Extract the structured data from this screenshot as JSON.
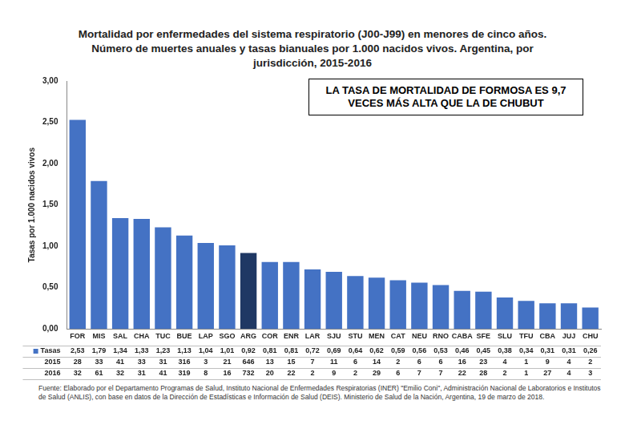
{
  "chart_data": {
    "type": "bar",
    "title": "Mortalidad por enfermedades del sistema respiratorio (J00-J99) en menores de cinco años. Número de muertes anuales y tasas bianuales por 1.000 nacidos vivos. Argentina, por jurisdicción, 2015-2016",
    "y_label": "Tasas por 1.000 nacidos vivos",
    "annotation": "LA TASA DE MORTALIDAD DE FORMOSA ES 9,7 VECES MÁS ALTA QUE LA DE CHUBUT",
    "source": "Fuente: Elaborado por el Departamento Programas de Salud, Instituto Nacional de Enfermedades Respiratorias (INER) \"Emilio Coni\", Administración Nacional de Laboratorios e Institutos de Salud (ANLIS), con base en datos de la Dirección de Estadísticas e Información de Salud (DEIS). Ministerio de Salud de la Nación, Argentina, 19 de marzo de 2018.",
    "categories": [
      "FOR",
      "MIS",
      "SAL",
      "CHA",
      "TUC",
      "BUE",
      "LAP",
      "SGO",
      "ARG",
      "COR",
      "ENR",
      "LAR",
      "SJU",
      "STU",
      "MEN",
      "CAT",
      "NEU",
      "RNO",
      "CABA",
      "SFE",
      "SLU",
      "TFU",
      "CBA",
      "JUJ",
      "CHU"
    ],
    "series": [
      {
        "name": "Tasas",
        "colors": [
          "#4472c4",
          "#4472c4",
          "#4472c4",
          "#4472c4",
          "#4472c4",
          "#4472c4",
          "#4472c4",
          "#4472c4",
          "#1f3864",
          "#4472c4",
          "#4472c4",
          "#4472c4",
          "#4472c4",
          "#4472c4",
          "#4472c4",
          "#4472c4",
          "#4472c4",
          "#4472c4",
          "#4472c4",
          "#4472c4",
          "#4472c4",
          "#4472c4",
          "#4472c4",
          "#4472c4",
          "#4472c4"
        ],
        "values": [
          2.53,
          1.79,
          1.34,
          1.33,
          1.23,
          1.13,
          1.04,
          1.01,
          0.92,
          0.81,
          0.81,
          0.72,
          0.69,
          0.64,
          0.62,
          0.59,
          0.56,
          0.53,
          0.46,
          0.45,
          0.38,
          0.34,
          0.31,
          0.31,
          0.26
        ],
        "value_labels": [
          "2,53",
          "1,79",
          "1,34",
          "1,33",
          "1,23",
          "1,13",
          "1,04",
          "1,01",
          "0,92",
          "0,81",
          "0,81",
          "0,72",
          "0,69",
          "0,64",
          "0,62",
          "0,59",
          "0,56",
          "0,53",
          "0,46",
          "0,45",
          "0,38",
          "0,34",
          "0,31",
          "0,31",
          "0,26"
        ]
      }
    ],
    "table": {
      "rows": [
        {
          "label": "2015",
          "values": [
            28,
            33,
            41,
            33,
            31,
            316,
            3,
            21,
            646,
            13,
            15,
            7,
            11,
            6,
            14,
            2,
            6,
            6,
            16,
            23,
            4,
            1,
            9,
            4,
            2
          ]
        },
        {
          "label": "2016",
          "values": [
            32,
            61,
            32,
            31,
            41,
            319,
            8,
            16,
            732,
            20,
            22,
            2,
            9,
            2,
            29,
            6,
            7,
            7,
            22,
            28,
            2,
            1,
            27,
            4,
            3
          ]
        }
      ]
    },
    "ylim": [
      0,
      3
    ],
    "yticks": [
      {
        "value": 0,
        "label": "0,00"
      },
      {
        "value": 0.5,
        "label": "0,50"
      },
      {
        "value": 1,
        "label": "1,00"
      },
      {
        "value": 1.5,
        "label": "1,50"
      },
      {
        "value": 2,
        "label": "2,00"
      },
      {
        "value": 2.5,
        "label": "2,50"
      },
      {
        "value": 3,
        "label": "3,00"
      }
    ],
    "grid": false,
    "data_labels": false
  }
}
